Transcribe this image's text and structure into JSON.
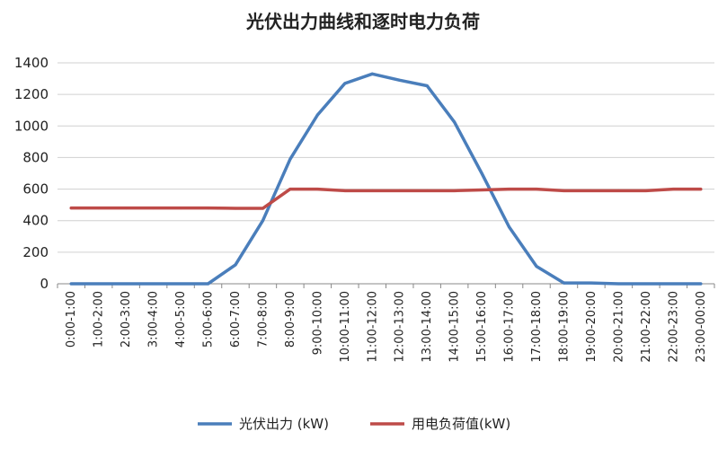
{
  "chart_data": {
    "type": "line",
    "title": "光伏出力曲线和逐时电力负荷",
    "xlabel": "",
    "ylabel": "",
    "categories": [
      "0:00-1:00",
      "1:00-2:00",
      "2:00-3:00",
      "3:00-4:00",
      "4:00-5:00",
      "5:00-6:00",
      "6:00-7:00",
      "7:00-8:00",
      "8:00-9:00",
      "9:00-10:00",
      "10:00-11:00",
      "11:00-12:00",
      "12:00-13:00",
      "13:00-14:00",
      "14:00-15:00",
      "15:00-16:00",
      "16:00-17:00",
      "17:00-18:00",
      "18:00-19:00",
      "19:00-20:00",
      "20:00-21:00",
      "21:00-22:00",
      "22:00-23:00",
      "23:00-00:00"
    ],
    "ylim": [
      0,
      1400
    ],
    "yticks": [
      0,
      200,
      400,
      600,
      800,
      1000,
      1200,
      1400
    ],
    "grid": true,
    "legend_position": "bottom",
    "series": [
      {
        "name": "光伏出力 (kW)",
        "color": "#4a7ebb",
        "values": [
          0,
          0,
          0,
          0,
          0,
          0,
          120,
          400,
          790,
          1070,
          1270,
          1330,
          1290,
          1255,
          1025,
          700,
          360,
          110,
          5,
          5,
          0,
          0,
          0,
          0
        ]
      },
      {
        "name": "用电负荷值(kW)",
        "color": "#be4b48",
        "values": [
          480,
          480,
          480,
          480,
          480,
          480,
          478,
          478,
          600,
          600,
          590,
          590,
          590,
          590,
          590,
          595,
          600,
          600,
          590,
          590,
          590,
          590,
          600,
          600
        ]
      }
    ]
  }
}
